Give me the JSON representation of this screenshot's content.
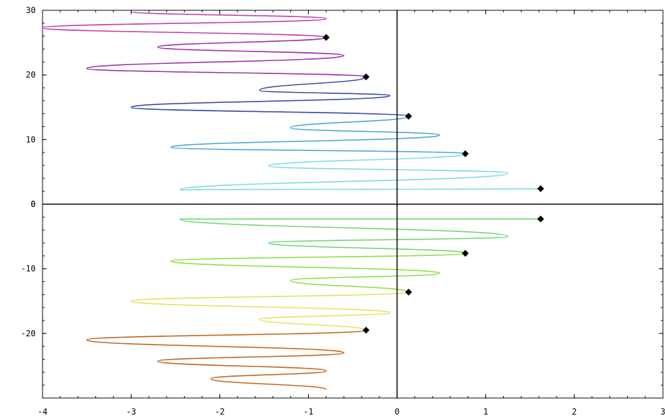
{
  "chart_data": {
    "type": "line",
    "title": "",
    "xlabel": "",
    "ylabel": "",
    "xlim": [
      -4,
      3
    ],
    "ylim": [
      -30,
      30
    ],
    "grid": false,
    "x_ticks": [
      -4,
      -3,
      -2,
      -1,
      0,
      1,
      2,
      3
    ],
    "y_ticks": [
      -20,
      -10,
      0,
      10,
      20,
      30
    ],
    "x_tick_labels": [
      "-4",
      "-3",
      "-2",
      "-1",
      "0",
      "1",
      "2",
      "3"
    ],
    "y_tick_labels": [
      "-20",
      "-10",
      "0",
      "10",
      "20",
      "30"
    ],
    "marked_points": [
      {
        "x": 1.62,
        "y": 2.4
      },
      {
        "x": 1.62,
        "y": -2.3
      },
      {
        "x": 0.77,
        "y": 7.8
      },
      {
        "x": 0.77,
        "y": -7.6
      },
      {
        "x": 0.13,
        "y": 13.6
      },
      {
        "x": 0.13,
        "y": -13.6
      },
      {
        "x": -0.35,
        "y": 19.7
      },
      {
        "x": -0.35,
        "y": -19.5
      },
      {
        "x": -0.8,
        "y": 25.8
      }
    ],
    "series": [
      {
        "color": "#80d8e8",
        "values": [
          [
            1.62,
            2.4
          ],
          [
            -2.45,
            2.2
          ],
          [
            1.25,
            4.8
          ],
          [
            -1.45,
            5.9
          ],
          [
            0.77,
            7.8
          ]
        ]
      },
      {
        "color": "#50a8d8",
        "values": [
          [
            0.77,
            7.8
          ],
          [
            -2.55,
            8.8
          ],
          [
            0.48,
            10.7
          ],
          [
            -1.2,
            11.8
          ],
          [
            0.13,
            13.6
          ]
        ]
      },
      {
        "color": "#3a4aa8",
        "values": [
          [
            0.13,
            13.6
          ],
          [
            -3.0,
            15.0
          ],
          [
            -0.08,
            16.8
          ],
          [
            -1.55,
            17.6
          ],
          [
            -0.35,
            19.7
          ]
        ]
      },
      {
        "color": "#a030a8",
        "values": [
          [
            -0.35,
            19.7
          ],
          [
            -3.5,
            21.0
          ],
          [
            -0.6,
            23.0
          ],
          [
            -2.7,
            24.3
          ],
          [
            -0.8,
            25.8
          ]
        ]
      },
      {
        "color": "#c040b0",
        "values": [
          [
            -0.8,
            25.8
          ],
          [
            -4.0,
            27.3
          ],
          [
            -0.8,
            28.7
          ],
          [
            -3.0,
            29.8
          ]
        ]
      },
      {
        "color": "#70d870",
        "values": [
          [
            1.62,
            -2.3
          ],
          [
            -2.45,
            -2.3
          ],
          [
            1.25,
            -5.0
          ],
          [
            -1.45,
            -6.0
          ],
          [
            0.77,
            -7.6
          ]
        ]
      },
      {
        "color": "#90e040",
        "values": [
          [
            0.77,
            -7.6
          ],
          [
            -2.55,
            -8.8
          ],
          [
            0.48,
            -10.7
          ],
          [
            -1.2,
            -11.8
          ],
          [
            0.13,
            -13.6
          ]
        ]
      },
      {
        "color": "#e8e060",
        "values": [
          [
            0.13,
            -13.6
          ],
          [
            -3.0,
            -15.0
          ],
          [
            -0.08,
            -16.8
          ],
          [
            -1.55,
            -17.8
          ],
          [
            -0.35,
            -19.5
          ]
        ]
      },
      {
        "color": "#c06820",
        "values": [
          [
            -0.35,
            -19.5
          ],
          [
            -3.5,
            -21.0
          ],
          [
            -0.6,
            -23.0
          ],
          [
            -2.7,
            -24.3
          ],
          [
            -0.8,
            -25.8
          ],
          [
            -2.1,
            -27.0
          ],
          [
            -0.8,
            -28.7
          ]
        ]
      }
    ]
  }
}
